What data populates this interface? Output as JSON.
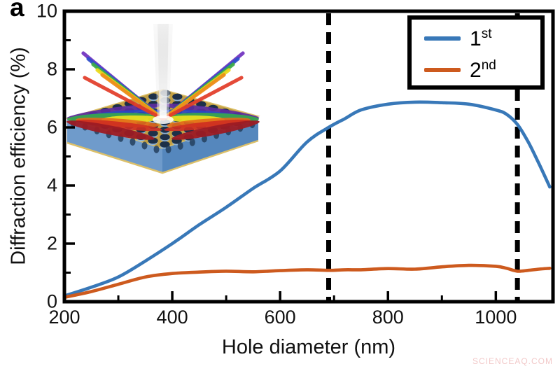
{
  "panel_label": "a",
  "watermark": "SCIENCEAQ.COM",
  "axes": {
    "x": {
      "label": "Hole diameter (nm)",
      "min": 200,
      "max": 1106,
      "major_ticks": [
        200,
        400,
        600,
        800,
        1000
      ],
      "minor_ticks": [
        300,
        500,
        700,
        900
      ]
    },
    "y": {
      "label": "Diffraction efficiency (%)",
      "min": 0,
      "max": 10,
      "major_ticks": [
        0,
        2,
        4,
        6,
        8,
        10
      ],
      "minor_ticks": [
        1,
        3,
        5,
        7,
        9
      ]
    }
  },
  "legend": {
    "entries": [
      {
        "base": "1",
        "sup": "st",
        "color": "#3878b8"
      },
      {
        "base": "2",
        "sup": "nd",
        "color": "#cd5a1e"
      }
    ]
  },
  "chart_data": {
    "type": "line",
    "title": "",
    "xlabel": "Hole diameter (nm)",
    "ylabel": "Diffraction efficiency (%)",
    "xlim": [
      200,
      1106
    ],
    "ylim": [
      0,
      10
    ],
    "grid": false,
    "legend_position": "top-right",
    "dashed_vlines_x": [
      690,
      1040
    ],
    "series": [
      {
        "name": "1st",
        "color": "#3878b8",
        "x": [
          200,
          250,
          300,
          350,
          400,
          450,
          500,
          550,
          600,
          650,
          690,
          720,
          750,
          800,
          850,
          900,
          950,
          1000,
          1020,
          1040,
          1060,
          1080,
          1100
        ],
        "y": [
          0.2,
          0.5,
          0.85,
          1.4,
          2.0,
          2.65,
          3.25,
          3.9,
          4.5,
          5.5,
          6.0,
          6.3,
          6.6,
          6.8,
          6.87,
          6.85,
          6.8,
          6.6,
          6.45,
          6.1,
          5.5,
          4.75,
          3.95
        ]
      },
      {
        "name": "2nd",
        "color": "#cd5a1e",
        "x": [
          200,
          250,
          300,
          350,
          400,
          450,
          500,
          550,
          600,
          650,
          690,
          720,
          750,
          800,
          850,
          900,
          950,
          1000,
          1020,
          1040,
          1060,
          1080,
          1100
        ],
        "y": [
          0.15,
          0.35,
          0.6,
          0.85,
          0.97,
          1.02,
          1.05,
          1.03,
          1.07,
          1.1,
          1.08,
          1.1,
          1.1,
          1.14,
          1.12,
          1.2,
          1.25,
          1.22,
          1.15,
          1.05,
          1.08,
          1.12,
          1.15
        ]
      }
    ]
  },
  "inset": {
    "name": "photonic-crystal-slab-diffraction-illustration",
    "slab_top_color": "#c2a044",
    "slab_left_color": "#6f9bcb",
    "slab_right_color": "#5587bd",
    "hole_color": "#1d3048",
    "hole_highlight_color": "#8fb3d6",
    "gold_edge_color": "#dcc06a",
    "incident_beam_color": "#ffffff",
    "fan_colors": [
      "#7030c0",
      "#2f50cc",
      "#3cae45",
      "#ecd91a",
      "#ee8c1a",
      "#e23b28"
    ],
    "inplane_colors": [
      "#5c2da0",
      "#2847c8",
      "#3aa84a",
      "#e8de20",
      "#e36a1a",
      "#cf2d20",
      "#9c1b24"
    ]
  }
}
